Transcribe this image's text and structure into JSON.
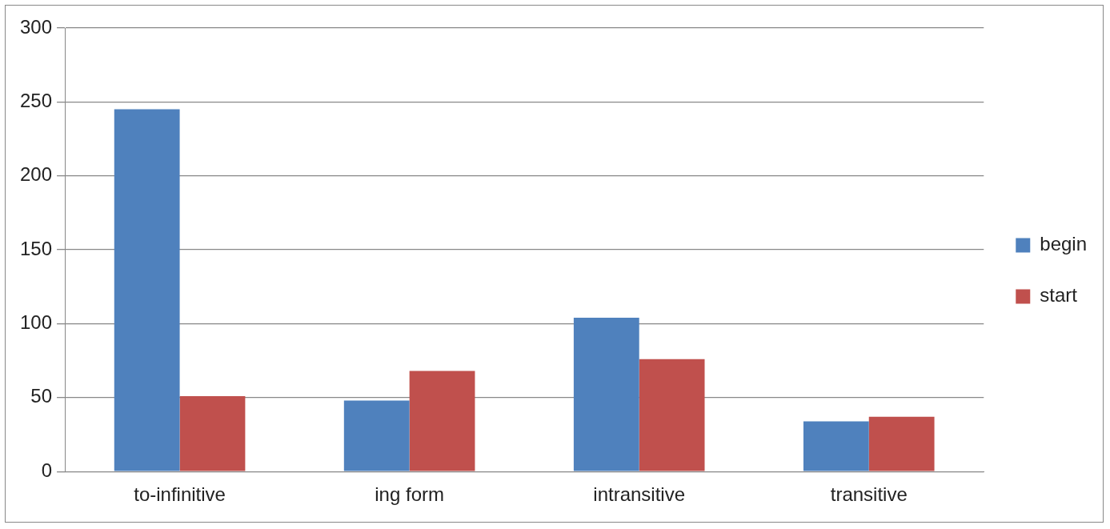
{
  "chart_data": {
    "type": "bar",
    "categories": [
      "to-infinitive",
      "ing form",
      "intransitive",
      "transitive"
    ],
    "series": [
      {
        "name": "begin",
        "color": "#4f81bd",
        "values": [
          245,
          48,
          104,
          34
        ]
      },
      {
        "name": "start",
        "color": "#c0504d",
        "values": [
          51,
          68,
          76,
          37
        ]
      }
    ],
    "ylim": [
      0,
      300
    ],
    "yticks": [
      0,
      50,
      100,
      150,
      200,
      250,
      300
    ],
    "grid": "y",
    "legend": "right"
  }
}
